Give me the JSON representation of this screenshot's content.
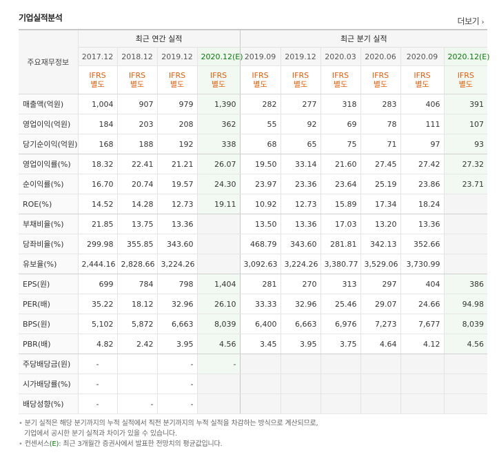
{
  "title": "기업실적분석",
  "more_label": "더보기",
  "header": {
    "main_label": "주요재무정보",
    "annual_label": "최근 연간 실적",
    "quarter_label": "최근 분기 실적",
    "annual_periods": [
      "2017.12",
      "2018.12",
      "2019.12",
      "2020.12(E)"
    ],
    "quarter_periods": [
      "2019.09",
      "2019.12",
      "2020.03",
      "2020.06",
      "2020.09",
      "2020.12(E)"
    ],
    "ifrs_line1": "IFRS",
    "ifrs_line2": "별도"
  },
  "rows": [
    {
      "label": "매출액(억원)",
      "values": [
        "1,004",
        "907",
        "979",
        "1,390",
        "282",
        "277",
        "318",
        "283",
        "406",
        "391"
      ]
    },
    {
      "label": "영업이익(억원)",
      "values": [
        "184",
        "203",
        "208",
        "362",
        "55",
        "92",
        "69",
        "78",
        "111",
        "107"
      ]
    },
    {
      "label": "당기순이익(억원)",
      "values": [
        "168",
        "188",
        "192",
        "338",
        "68",
        "65",
        "75",
        "71",
        "97",
        "93"
      ]
    },
    {
      "label": "영업이익률(%)",
      "values": [
        "18.32",
        "22.41",
        "21.21",
        "26.07",
        "19.50",
        "33.14",
        "21.60",
        "27.45",
        "27.42",
        "27.32"
      ]
    },
    {
      "label": "순이익률(%)",
      "values": [
        "16.70",
        "20.74",
        "19.57",
        "24.30",
        "23.97",
        "23.36",
        "23.64",
        "25.19",
        "23.86",
        "23.71"
      ]
    },
    {
      "label": "ROE(%)",
      "values": [
        "14.52",
        "14.28",
        "12.73",
        "19.11",
        "10.92",
        "12.73",
        "15.89",
        "17.34",
        "18.24",
        ""
      ]
    },
    {
      "label": "부채비율(%)",
      "values": [
        "21.85",
        "13.75",
        "13.36",
        "",
        "13.50",
        "13.36",
        "17.03",
        "13.20",
        "13.36",
        ""
      ]
    },
    {
      "label": "당좌비율(%)",
      "values": [
        "299.98",
        "355.85",
        "343.60",
        "",
        "468.79",
        "343.60",
        "281.81",
        "342.13",
        "352.66",
        ""
      ]
    },
    {
      "label": "유보율(%)",
      "values": [
        "2,444.16",
        "2,828.66",
        "3,224.26",
        "",
        "3,092.63",
        "3,224.26",
        "3,380.77",
        "3,529.06",
        "3,730.99",
        ""
      ]
    },
    {
      "label": "EPS(원)",
      "values": [
        "699",
        "784",
        "798",
        "1,404",
        "281",
        "270",
        "313",
        "297",
        "404",
        "386"
      ]
    },
    {
      "label": "PER(배)",
      "values": [
        "35.22",
        "18.12",
        "32.96",
        "26.10",
        "33.33",
        "32.96",
        "25.46",
        "29.07",
        "24.66",
        "94.98"
      ]
    },
    {
      "label": "BPS(원)",
      "values": [
        "5,102",
        "5,872",
        "6,663",
        "8,039",
        "6,400",
        "6,663",
        "6,976",
        "7,273",
        "7,677",
        "8,039"
      ]
    },
    {
      "label": "PBR(배)",
      "values": [
        "4.82",
        "2.42",
        "3.95",
        "4.56",
        "3.45",
        "3.95",
        "3.75",
        "4.64",
        "4.12",
        "4.56"
      ]
    },
    {
      "label": "주당배당금(원)",
      "values": [
        "-",
        "",
        "-",
        "-",
        "",
        "",
        "",
        "",
        "",
        ""
      ]
    },
    {
      "label": "시가배당률(%)",
      "values": [
        "-",
        "",
        "-",
        "",
        "",
        "",
        "",
        "",
        "",
        ""
      ]
    },
    {
      "label": "배당성향(%)",
      "values": [
        "-",
        "-",
        "-",
        "",
        "",
        "",
        "",
        "",
        "",
        ""
      ]
    }
  ],
  "notes": {
    "line1": "분기 실적은 해당 분기까지의 누적 실적에서 직전 분기까지의 누적 실적을 차감하는 방식으로 계산되므로,",
    "line2": "기업에서 공시한 분기 실적과 차이가 있을 수 있습니다.",
    "line3_prefix": "컨센서스",
    "line3_marker": "(E)",
    "line3_rest": ": 최근 3개월간 증권사에서 발표한 전망치의 평균값입니다."
  }
}
